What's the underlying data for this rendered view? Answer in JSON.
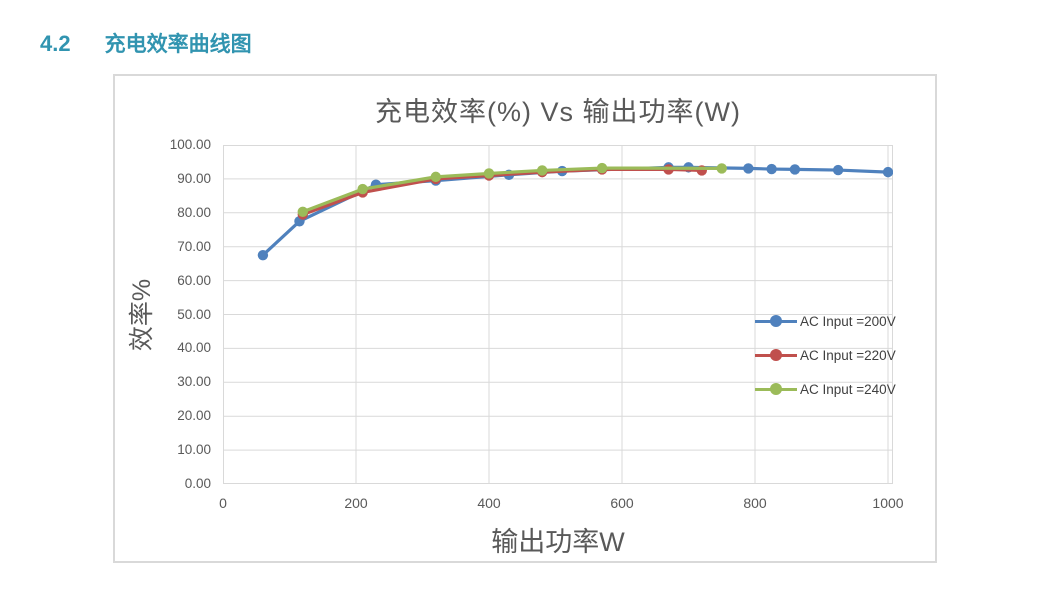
{
  "page": {
    "section_number": "4.2",
    "section_title": "充电效率曲线图",
    "accent_color": "#3194B0"
  },
  "chart_data": {
    "type": "line",
    "title": "充电效率(%) Vs 输出功率(W)",
    "xlabel": "输出功率W",
    "ylabel": "效率%",
    "xlim": [
      0,
      1000
    ],
    "ylim": [
      0,
      100
    ],
    "x_ticks": [
      0,
      200,
      400,
      600,
      800,
      1000
    ],
    "y_ticks": [
      "100.00",
      "90.00",
      "80.00",
      "70.00",
      "60.00",
      "50.00",
      "40.00",
      "30.00",
      "20.00",
      "10.00",
      "0.00"
    ],
    "grid": true,
    "legend_position": "middle-right",
    "colors": {
      "gridline": "#D9D9D9",
      "axis_text": "#595959",
      "title_text": "#595959"
    },
    "series": [
      {
        "name": "AC Input =200V",
        "color": "#4F81BD",
        "points": [
          [
            60,
            67.5
          ],
          [
            115,
            77.5
          ],
          [
            230,
            88.3
          ],
          [
            320,
            89.5
          ],
          [
            430,
            91.2
          ],
          [
            510,
            92.3
          ],
          [
            670,
            93.4
          ],
          [
            700,
            93.4
          ],
          [
            790,
            93.1
          ],
          [
            825,
            92.9
          ],
          [
            860,
            92.8
          ],
          [
            925,
            92.6
          ],
          [
            1000,
            92.0
          ]
        ]
      },
      {
        "name": "AC Input =220V",
        "color": "#C0504D",
        "points": [
          [
            120,
            79.5
          ],
          [
            210,
            86.0
          ],
          [
            320,
            90.0
          ],
          [
            400,
            91.0
          ],
          [
            480,
            92.0
          ],
          [
            570,
            92.8
          ],
          [
            670,
            92.8
          ],
          [
            720,
            92.5
          ]
        ]
      },
      {
        "name": "AC Input =240V",
        "color": "#9BBB59",
        "points": [
          [
            120,
            80.3
          ],
          [
            210,
            87.0
          ],
          [
            320,
            90.6
          ],
          [
            400,
            91.6
          ],
          [
            480,
            92.5
          ],
          [
            570,
            93.2
          ],
          [
            750,
            93.1
          ]
        ]
      }
    ]
  }
}
